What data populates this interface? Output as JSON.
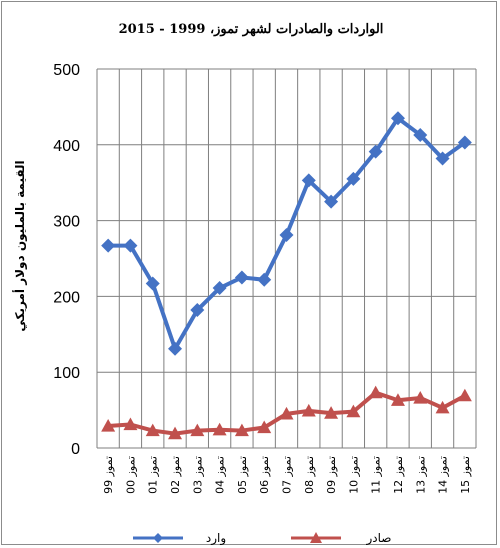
{
  "chart_data": {
    "type": "line",
    "title": "الواردات والصادرات لشهر تموز، 1999 - 2015",
    "ylabel": "القيمة بالمليون دولار أمريكي",
    "xlabel": "",
    "ylim": [
      0,
      500
    ],
    "yticks": [
      0,
      100,
      200,
      300,
      400,
      500
    ],
    "grid": true,
    "legend": "bottom",
    "categories": [
      "تموز 99",
      "تموز 00",
      "تموز 01",
      "تموز 02",
      "تموز 03",
      "تموز 04",
      "تموز 05",
      "تموز 06",
      "تموز 07",
      "تموز 08",
      "تموز 09",
      "تموز 10",
      "تموز 11",
      "تموز 12",
      "تموز 13",
      "تموز 14",
      "تموز 15"
    ],
    "series": [
      {
        "name": "وارد",
        "color": "#4472C4",
        "marker": "diamond",
        "values": [
          267,
          267,
          217,
          131,
          182,
          211,
          225,
          222,
          281,
          353,
          325,
          355,
          391,
          435,
          413,
          382,
          403
        ]
      },
      {
        "name": "صادر",
        "color": "#C0504D",
        "marker": "triangle",
        "values": [
          29,
          31,
          23,
          19,
          23,
          24,
          23,
          27,
          45,
          49,
          46,
          48,
          73,
          63,
          66,
          53,
          69
        ]
      }
    ]
  }
}
